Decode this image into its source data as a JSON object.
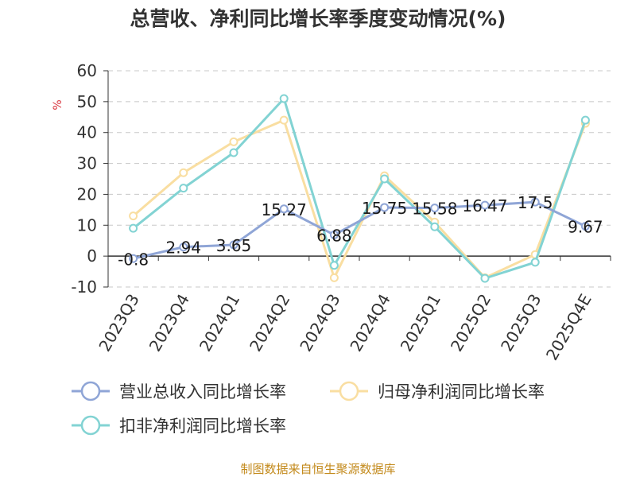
{
  "title": "总营收、净利同比增长率季度变动情况(%)",
  "source": "制图数据来自恒生聚源数据库",
  "colors": {
    "revenue": "#8fa5d6",
    "net_profit": "#f9dea1",
    "deducted_profit": "#82d3d3",
    "grid": "#c8c8c8",
    "axis": "#333333",
    "unit": "#d9363e",
    "source": "#c38a1c"
  },
  "chart_data": {
    "type": "line",
    "title": "总营收、净利同比增长率季度变动情况(%)",
    "ylabel": "%",
    "xlabel": "",
    "ylim": [
      -10,
      60
    ],
    "yticks": [
      -10,
      0,
      10,
      20,
      30,
      40,
      50,
      60
    ],
    "grid": true,
    "legend_position": "bottom",
    "categories": [
      "2023Q3",
      "2023Q4",
      "2024Q1",
      "2024Q2",
      "2024Q3",
      "2024Q4",
      "2025Q1",
      "2025Q2",
      "2025Q3",
      "2025Q4E"
    ],
    "series": [
      {
        "name": "营业总收入同比增长率",
        "color": "#8fa5d6",
        "values": [
          -0.8,
          2.94,
          3.65,
          15.27,
          6.88,
          15.75,
          15.58,
          16.47,
          17.5,
          9.67
        ],
        "labels": [
          "-0.8",
          "2.94",
          "3.65",
          "15.27",
          "6.88",
          "15.75",
          "15.58",
          "16.47",
          "17.5",
          "9.67"
        ]
      },
      {
        "name": "归母净利润同比增长率",
        "color": "#f9dea1",
        "values": [
          13,
          27,
          37,
          44,
          -7,
          26,
          11,
          -7,
          0.5,
          43
        ]
      },
      {
        "name": "扣非净利润同比增长率",
        "color": "#82d3d3",
        "values": [
          9,
          22,
          33.5,
          51,
          -3,
          25,
          9.5,
          -7.2,
          -2,
          44
        ]
      }
    ]
  }
}
